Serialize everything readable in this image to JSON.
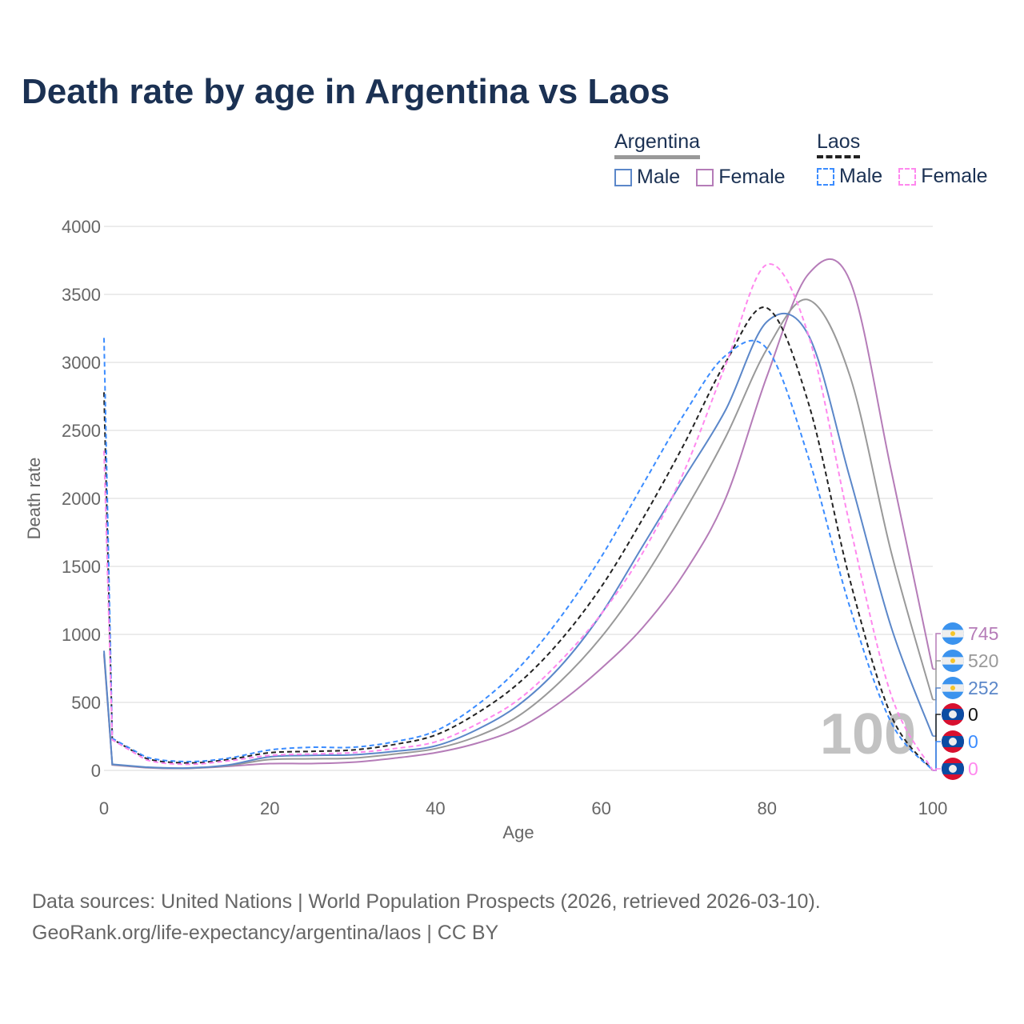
{
  "title": "Death rate by age in Argentina vs Laos",
  "legend": {
    "groups": [
      {
        "name": "Argentina",
        "male": "Male",
        "female": "Female"
      },
      {
        "name": "Laos",
        "male": "Male",
        "female": "Female"
      }
    ]
  },
  "watermark": "100",
  "footer": {
    "line1": "Data sources: United Nations | World Population Prospects (2026, retrieved 2026-03-10).",
    "line2": "GeoRank.org/life-expectancy/argentina/laos | CC BY"
  },
  "chart_data": {
    "type": "line",
    "title": "Death rate by age in Argentina vs Laos",
    "xlabel": "Age",
    "ylabel": "Death rate",
    "xlim": [
      0,
      100
    ],
    "ylim": [
      0,
      4000
    ],
    "xticks": [
      "0",
      "20",
      "40",
      "60",
      "80",
      "100"
    ],
    "yticks": [
      "0",
      "500",
      "1000",
      "1500",
      "2000",
      "2500",
      "3000",
      "3500",
      "4000"
    ],
    "grid": true,
    "x": [
      0,
      1,
      5,
      10,
      15,
      20,
      25,
      30,
      35,
      40,
      45,
      50,
      55,
      60,
      65,
      70,
      75,
      80,
      85,
      90,
      95,
      100
    ],
    "series": [
      {
        "name": "Argentina Female",
        "country": "Argentina",
        "color": "#b57cb8",
        "dash": false,
        "end_label": "745",
        "values": [
          850,
          40,
          20,
          15,
          30,
          50,
          50,
          60,
          90,
          130,
          200,
          310,
          500,
          750,
          1050,
          1450,
          2000,
          2900,
          3650,
          3600,
          2200,
          745
        ]
      },
      {
        "name": "Argentina Total",
        "country": "Argentina",
        "color": "#999999",
        "dash": false,
        "end_label": "520",
        "values": [
          860,
          42,
          22,
          16,
          35,
          80,
          85,
          90,
          120,
          160,
          250,
          400,
          650,
          980,
          1400,
          1900,
          2450,
          3100,
          3460,
          2900,
          1600,
          520
        ]
      },
      {
        "name": "Argentina Male",
        "country": "Argentina",
        "color": "#5b87c9",
        "dash": false,
        "end_label": "252",
        "values": [
          880,
          45,
          24,
          18,
          40,
          100,
          110,
          115,
          140,
          180,
          300,
          480,
          760,
          1150,
          1650,
          2150,
          2650,
          3300,
          3200,
          2150,
          1050,
          252
        ]
      },
      {
        "name": "Laos Total",
        "country": "Laos",
        "color": "#222222",
        "dash": true,
        "end_label": "0",
        "values": [
          2780,
          230,
          90,
          55,
          80,
          130,
          140,
          150,
          190,
          260,
          420,
          640,
          950,
          1350,
          1850,
          2400,
          3000,
          3400,
          2700,
          1400,
          400,
          0
        ]
      },
      {
        "name": "Laos Male",
        "country": "Laos",
        "color": "#3b8cff",
        "dash": true,
        "end_label": "0",
        "values": [
          3180,
          235,
          100,
          65,
          90,
          150,
          170,
          170,
          210,
          290,
          480,
          750,
          1120,
          1570,
          2100,
          2620,
          3050,
          3100,
          2300,
          1200,
          350,
          0
        ]
      },
      {
        "name": "Laos Female",
        "country": "Laos",
        "color": "#ff88ee",
        "dash": true,
        "end_label": "0",
        "values": [
          2350,
          225,
          80,
          45,
          70,
          110,
          120,
          130,
          160,
          210,
          340,
          520,
          800,
          1150,
          1600,
          2200,
          2980,
          3720,
          3200,
          1800,
          550,
          0
        ]
      }
    ]
  }
}
